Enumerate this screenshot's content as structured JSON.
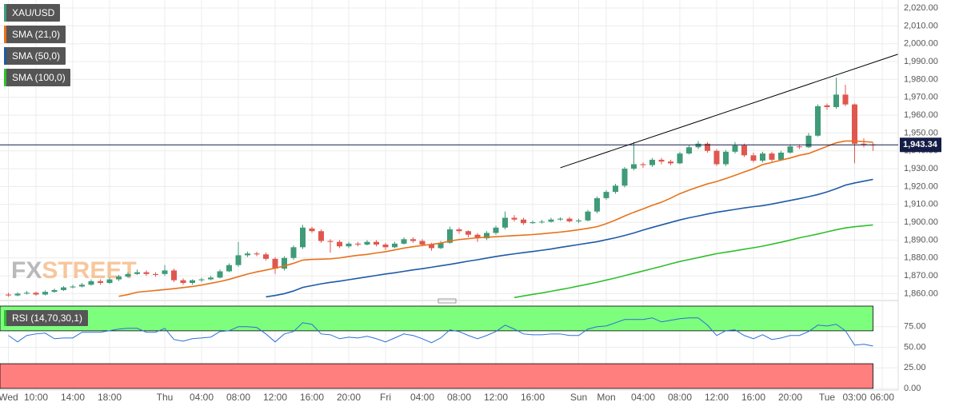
{
  "chart_data": [
    {
      "type": "candlestick",
      "categories": [
        "Wed",
        null,
        null,
        "10:00",
        null,
        null,
        null,
        "14:00",
        null,
        null,
        null,
        "18:00",
        null,
        null,
        null,
        null,
        null,
        "Thu",
        null,
        null,
        null,
        "04:00",
        null,
        null,
        null,
        "08:00",
        null,
        null,
        null,
        "12:00",
        null,
        null,
        null,
        "16:00",
        null,
        null,
        null,
        "20:00",
        null,
        null,
        null,
        "Fri",
        null,
        null,
        null,
        "04:00",
        null,
        null,
        null,
        "08:00",
        null,
        null,
        null,
        "12:00",
        null,
        null,
        null,
        "16:00",
        null,
        null,
        null,
        null,
        "Sun",
        null,
        null,
        "Mon",
        null,
        null,
        null,
        "04:00",
        null,
        null,
        null,
        "08:00",
        null,
        null,
        null,
        "12:00",
        null,
        null,
        null,
        "16:00",
        null,
        null,
        null,
        "20:00",
        null,
        null,
        null,
        "Tue",
        null,
        null,
        "03:00",
        null,
        null,
        "06:00"
      ],
      "ylim": [
        1857.5,
        2024.5
      ],
      "yticks": [
        {
          "value": 1860,
          "label": "1,860.00"
        },
        {
          "value": 1870,
          "label": "1,870.00"
        },
        {
          "value": 1880,
          "label": "1,880.00"
        },
        {
          "value": 1890,
          "label": "1,890.00"
        },
        {
          "value": 1900,
          "label": "1,900.00"
        },
        {
          "value": 1910,
          "label": "1,910.00"
        },
        {
          "value": 1920,
          "label": "1,920.00"
        },
        {
          "value": 1930,
          "label": "1,930.00"
        },
        {
          "value": 1940,
          "label": "1,940.00"
        },
        {
          "value": 1950,
          "label": "1,950.00"
        },
        {
          "value": 1960,
          "label": "1,960.00"
        },
        {
          "value": 1970,
          "label": "1,970.00"
        },
        {
          "value": 1980,
          "label": "1,980.00"
        },
        {
          "value": 1990,
          "label": "1,990.00"
        },
        {
          "value": 2000,
          "label": "2,000.00"
        },
        {
          "value": 2010,
          "label": "2,010.00"
        },
        {
          "value": 2020,
          "label": "2,020.00"
        }
      ],
      "grid": true,
      "watermark": [
        "FX",
        "STREET"
      ],
      "last_price": {
        "value": 1943.34,
        "label": "1,943.34",
        "color": "#131d45"
      },
      "trendline": {
        "from": [
          60,
          1930.5
        ],
        "to": [
          96.7,
          1994.1
        ],
        "color": "#000000"
      },
      "candles": {
        "name": "XAU/USD",
        "color": "#3f9b78",
        "up_color": "#3f9b78",
        "down_color": "#e0574f",
        "open": [
          1859.5,
          1859,
          1860,
          1860.5,
          1859.5,
          1861,
          1862,
          1863.5,
          1864,
          1865,
          1867,
          1866,
          1868,
          1869.5,
          1871,
          1872,
          1871,
          1871,
          1873,
          1867.5,
          1866,
          1867.5,
          1868,
          1869,
          1872.5,
          1876,
          1881.5,
          1882.5,
          1882,
          1879.5,
          1874,
          1880,
          1886,
          1896.5,
          1895,
          1889.5,
          1889,
          1886.5,
          1888,
          1887.5,
          1889,
          1887.5,
          1886,
          1888,
          1890.5,
          1889.5,
          1887.5,
          1885.5,
          1888.5,
          1896,
          1895,
          1893,
          1891,
          1894,
          1897,
          1902.5,
          1901.5,
          1899.5,
          1900,
          1900.3,
          1901.5,
          1902,
          1900.5,
          1901,
          1906,
          1913.5,
          1917,
          1920.5,
          1930,
          1932.5,
          1932,
          1935,
          1934,
          1933,
          1938.5,
          1942,
          1944,
          1940,
          1932.5,
          1939.5,
          1943,
          1937.5,
          1934.5,
          1938.5,
          1935,
          1939,
          1942.5,
          1942,
          1948.5,
          1965.5,
          1964.5,
          1971.5,
          1966,
          1944,
          1943.5,
          null
        ],
        "high": [
          1860.5,
          1860.8,
          1861.5,
          1861.2,
          1861.8,
          1862.8,
          1864.2,
          1865,
          1866,
          1868,
          1868,
          1869,
          1870.5,
          1872,
          1873.5,
          1873,
          1872,
          1876,
          1874,
          1868.5,
          1868,
          1869,
          1870,
          1873.5,
          1877,
          1889,
          1883.5,
          1883.5,
          1883,
          1880.5,
          1881,
          1887,
          1898.5,
          1897.5,
          1896,
          1890.5,
          1890,
          1889,
          1889,
          1890,
          1890,
          1888.5,
          1889,
          1891.5,
          1891.5,
          1890.5,
          1888.5,
          1889.5,
          1897.5,
          1897,
          1895.5,
          1894,
          1895,
          1898,
          1906,
          1904,
          1902.5,
          1901,
          1901.3,
          1902.5,
          1902.8,
          1903,
          1902,
          1907,
          1914.5,
          1918,
          1921.5,
          1931,
          1945,
          1933.5,
          1936,
          1936,
          1935,
          1939.5,
          1943,
          1945.5,
          1945,
          1941,
          1940.5,
          1945,
          1944,
          1939,
          1939.5,
          1939.5,
          1940,
          1943.5,
          1943.5,
          1950,
          1966,
          1966.5,
          1981,
          1977,
          1966.5,
          1947,
          1944.5,
          null
        ],
        "low": [
          1858.3,
          1858.5,
          1859.5,
          1858.8,
          1859,
          1860.5,
          1861.5,
          1863,
          1863.5,
          1864.5,
          1865,
          1865.5,
          1867,
          1869,
          1870.5,
          1870,
          1869.5,
          1870,
          1866.5,
          1865,
          1865,
          1866.5,
          1867.5,
          1868.5,
          1872,
          1875,
          1880.5,
          1881,
          1878.5,
          1871,
          1873,
          1879,
          1885,
          1894,
          1888.5,
          1883,
          1885.5,
          1885.5,
          1886.5,
          1887,
          1886.5,
          1884.5,
          1885.5,
          1887.5,
          1888.5,
          1886.5,
          1884,
          1885,
          1888,
          1893.5,
          1891.5,
          1889,
          1890,
          1893,
          1896,
          1900.5,
          1898.5,
          1899,
          1899.3,
          1899.8,
          1900.8,
          1899.8,
          1899.5,
          1900.5,
          1905,
          1912.5,
          1916,
          1919.5,
          1929,
          1930.5,
          1931,
          1932.5,
          1932,
          1932.5,
          1938,
          1941,
          1939,
          1931.5,
          1931.5,
          1938.5,
          1936.5,
          1933.5,
          1933.5,
          1934,
          1934.5,
          1938.5,
          1941,
          1941.5,
          1948,
          1963,
          1963.5,
          1965,
          1933,
          1942,
          1940,
          null
        ],
        "close": [
          1859,
          1860,
          1860.5,
          1859.5,
          1861,
          1862,
          1863.5,
          1864,
          1865,
          1867,
          1866,
          1868,
          1869.5,
          1871,
          1872,
          1871,
          1870.5,
          1873,
          1867.5,
          1866,
          1867.5,
          1868,
          1869,
          1872.5,
          1876,
          1881.5,
          1882.5,
          1882,
          1879.5,
          1874,
          1880,
          1886,
          1897,
          1895,
          1889.5,
          1889,
          1886.5,
          1888,
          1887.5,
          1889,
          1887.5,
          1886,
          1888,
          1890.5,
          1889.5,
          1887.5,
          1885.5,
          1888.5,
          1896,
          1895,
          1893,
          1891,
          1894,
          1897,
          1902.5,
          1901.5,
          1899.5,
          1900,
          1900.3,
          1901.5,
          1902,
          1900.5,
          1901,
          1906,
          1913.5,
          1917,
          1920.5,
          1930,
          1932.5,
          1932,
          1935,
          1934,
          1933,
          1938.5,
          1942,
          1944,
          1940,
          1932.5,
          1939.5,
          1943,
          1937.5,
          1934.5,
          1938.5,
          1935,
          1939,
          1942.5,
          1942,
          1948.5,
          1965,
          1964.5,
          1971.5,
          1966,
          1944,
          1943.5,
          1943.34,
          null
        ]
      },
      "series": [
        {
          "name": "SMA (21,0)",
          "color": "#e8711a",
          "values": [
            null,
            null,
            null,
            null,
            null,
            null,
            null,
            null,
            null,
            null,
            null,
            null,
            1858.5,
            1859.5,
            1860.8,
            1861.3,
            1861.8,
            1862.3,
            1862.8,
            1863.4,
            1864,
            1864.8,
            1865.8,
            1866.8,
            1868,
            1869.5,
            1871,
            1872.2,
            1873.2,
            1874.3,
            1875.5,
            1877,
            1878.8,
            1879.2,
            1879.3,
            1879.5,
            1880,
            1880.8,
            1881.5,
            1882,
            1882.8,
            1883.5,
            1884.5,
            1885.5,
            1886.3,
            1887,
            1887.6,
            1888.3,
            1889.5,
            1890.3,
            1890.8,
            1891.3,
            1891.6,
            1891.9,
            1892.2,
            1892.5,
            1892.8,
            1893.1,
            1893.5,
            1894,
            1894.5,
            1895.1,
            1895.8,
            1896.6,
            1897.5,
            1899.2,
            1901.2,
            1903.5,
            1905.6,
            1907.5,
            1909.5,
            1911.2,
            1913.5,
            1916,
            1918,
            1919.8,
            1921.5,
            1922.8,
            1924.5,
            1926.3,
            1928.2,
            1930,
            1932.3,
            1933.5,
            1934.8,
            1936,
            1937.5,
            1938.5,
            1940.5,
            1942.5,
            1944.5,
            1945.5,
            1945.5,
            1945.2,
            1944.8,
            null
          ]
        },
        {
          "name": "SMA (50,0)",
          "color": "#1f5aa6",
          "values": [
            null,
            null,
            null,
            null,
            null,
            null,
            null,
            null,
            null,
            null,
            null,
            null,
            null,
            null,
            null,
            null,
            null,
            null,
            null,
            null,
            null,
            null,
            null,
            null,
            null,
            null,
            null,
            null,
            1858.2,
            1859,
            1860,
            1861.5,
            1863.5,
            1864.5,
            1865.5,
            1866.3,
            1867,
            1867.8,
            1868.6,
            1869.4,
            1870.2,
            1871,
            1871.7,
            1872.5,
            1873.3,
            1874,
            1874.8,
            1875.6,
            1876.4,
            1877.3,
            1878.2,
            1879,
            1879.9,
            1880.8,
            1881.6,
            1882.3,
            1883,
            1883.6,
            1884.3,
            1885,
            1885.9,
            1886.7,
            1887.5,
            1888.3,
            1889.1,
            1890.2,
            1891.3,
            1892.6,
            1894,
            1895.6,
            1897.1,
            1898.5,
            1899.9,
            1901.3,
            1902.5,
            1903.5,
            1904.6,
            1905.6,
            1906.4,
            1907.2,
            1908,
            1908.7,
            1909.3,
            1910.2,
            1911.2,
            1912.2,
            1913.2,
            1914.3,
            1915.5,
            1917,
            1918.8,
            1920.8,
            1922,
            1923,
            1924,
            null
          ]
        },
        {
          "name": "SMA (100,0)",
          "color": "#2fbf2f",
          "values": [
            null,
            null,
            null,
            null,
            null,
            null,
            null,
            null,
            null,
            null,
            null,
            null,
            null,
            null,
            null,
            null,
            null,
            null,
            null,
            null,
            null,
            null,
            null,
            null,
            null,
            null,
            null,
            null,
            null,
            null,
            null,
            null,
            null,
            null,
            null,
            null,
            null,
            null,
            null,
            null,
            null,
            null,
            null,
            null,
            null,
            null,
            null,
            null,
            null,
            null,
            null,
            null,
            null,
            null,
            null,
            1857.8,
            1858.7,
            1859.6,
            1860.4,
            1861.3,
            1862.3,
            1863.2,
            1864.3,
            1865.3,
            1866.4,
            1867.6,
            1868.8,
            1870.1,
            1871.4,
            1872.7,
            1874,
            1875.3,
            1876.7,
            1878,
            1879.1,
            1880.2,
            1881.3,
            1882.4,
            1883.2,
            1884,
            1884.9,
            1885.7,
            1886.6,
            1887.7,
            1888.8,
            1890,
            1891.3,
            1892.3,
            1893.4,
            1894.6,
            1895.8,
            1896.8,
            1897.5,
            1898,
            1898.5,
            null
          ]
        }
      ]
    },
    {
      "type": "line",
      "ylim": [
        0,
        100
      ],
      "yticks": [
        {
          "value": 0,
          "label": "0.00"
        },
        {
          "value": 25,
          "label": "25.00"
        },
        {
          "value": 50,
          "label": "50.00"
        },
        {
          "value": 75,
          "label": "75.00"
        }
      ],
      "bands": [
        {
          "from": 70,
          "to": 100,
          "color": "#7dff7d"
        },
        {
          "from": 0,
          "to": 30,
          "color": "#ff7f7f"
        }
      ],
      "series": [
        {
          "name": "RSI (14,70,30,1)",
          "color": "#2b6fd6",
          "values": [
            64.3,
            56.5,
            64.3,
            66.2,
            67.2,
            60.4,
            61.3,
            61.3,
            68.2,
            68.2,
            68.2,
            70.1,
            72.1,
            73,
            73,
            68.2,
            68.2,
            73,
            59.4,
            57.4,
            60.4,
            61.3,
            62.3,
            69.1,
            70.1,
            75,
            75,
            74,
            66.2,
            56.5,
            66.2,
            69.1,
            79.8,
            77.9,
            66.2,
            65.2,
            60.4,
            62.3,
            61.3,
            63.3,
            60.4,
            56.5,
            61.3,
            66.2,
            64.3,
            60.4,
            55.5,
            61.3,
            71.1,
            69.1,
            64.3,
            60.4,
            64.3,
            69.1,
            76.9,
            72.1,
            66.2,
            65.2,
            65.2,
            66.2,
            66.2,
            64.3,
            64.3,
            72.1,
            75,
            75.9,
            79.8,
            83.7,
            83.7,
            83.7,
            85.7,
            80.8,
            82.8,
            84.7,
            85.7,
            85.7,
            76.9,
            64.3,
            70.1,
            71.1,
            64.3,
            60.4,
            65.2,
            59.4,
            61.3,
            64.3,
            64.3,
            69.1,
            76.9,
            75.9,
            77.9,
            70.1,
            52.6,
            53.6,
            51.6,
            null
          ]
        }
      ]
    }
  ]
}
